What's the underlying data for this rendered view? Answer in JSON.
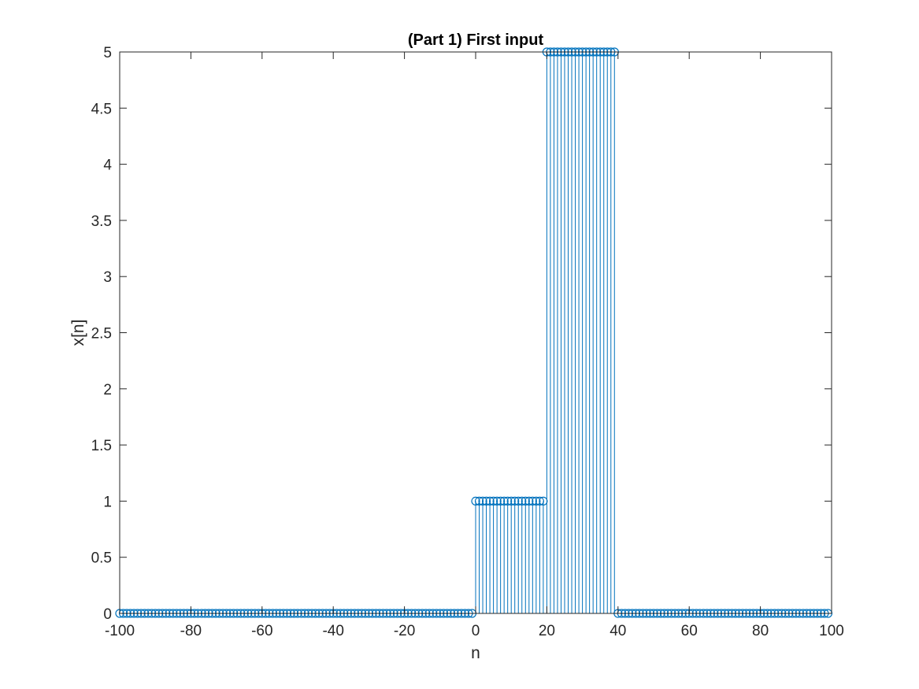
{
  "chart_data": {
    "type": "stem",
    "title": "(Part 1) First input",
    "xlabel": "n",
    "ylabel": "x[n]",
    "xlim": [
      -100,
      100
    ],
    "ylim": [
      0,
      5
    ],
    "xticks": [
      -100,
      -80,
      -60,
      -40,
      -20,
      0,
      20,
      40,
      60,
      80,
      100
    ],
    "xtick_labels": [
      "-100",
      "-80",
      "-60",
      "-40",
      "-20",
      "0",
      "20",
      "40",
      "60",
      "80",
      "100"
    ],
    "yticks": [
      0,
      0.5,
      1,
      1.5,
      2,
      2.5,
      3,
      3.5,
      4,
      4.5,
      5
    ],
    "ytick_labels": [
      "0",
      "0.5",
      "1",
      "1.5",
      "2",
      "2.5",
      "3",
      "3.5",
      "4",
      "4.5",
      "5"
    ],
    "grid": false,
    "color": "#0072BD",
    "marker": "open-circle",
    "segments": [
      {
        "n_start": -100,
        "n_end": -1,
        "value": 0
      },
      {
        "n_start": 0,
        "n_end": 19,
        "value": 1
      },
      {
        "n_start": 20,
        "n_end": 39,
        "value": 5
      },
      {
        "n_start": 40,
        "n_end": 99,
        "value": 0
      }
    ]
  }
}
